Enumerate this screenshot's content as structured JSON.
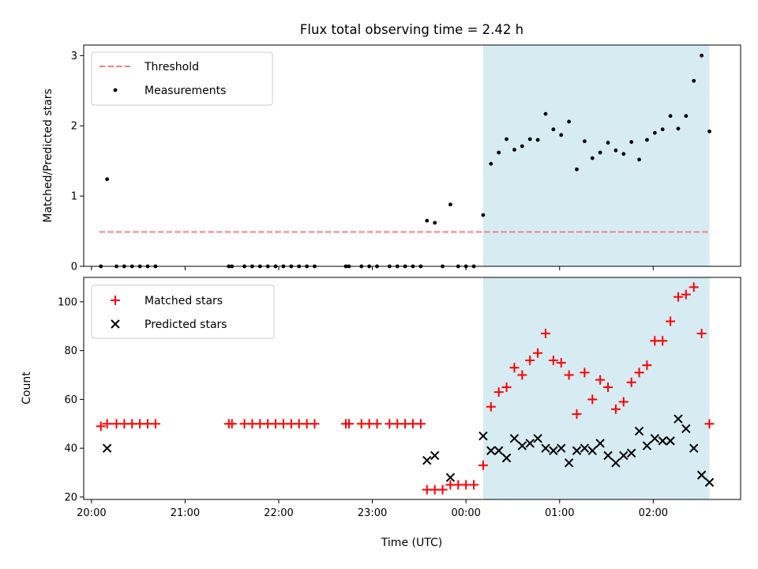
{
  "chart_data": [
    {
      "panel": "top",
      "type": "scatter",
      "title": "Flux total observing time = 2.42 h",
      "ylabel": "Matched/Predicted stars",
      "xlim": [
        "19:55",
        "02:56"
      ],
      "ylim": [
        0,
        3.15
      ],
      "yticks": [
        "0",
        "1",
        "2",
        "3"
      ],
      "shaded_region": {
        "from": "00:11",
        "to": "02:36",
        "color": "#add8e6"
      },
      "legend": {
        "placement": "upper left",
        "entries": [
          "Threshold",
          "Measurements"
        ]
      },
      "threshold": {
        "name": "Threshold",
        "value": 0.49,
        "x_from": "20:05",
        "x_to": "02:36",
        "color": "#f08080",
        "style": "dashed"
      },
      "measurements": {
        "name": "Measurements",
        "color": "#000000",
        "points": [
          [
            "20:06",
            0
          ],
          [
            "20:10",
            1.24
          ],
          [
            "20:16",
            0
          ],
          [
            "20:21",
            0
          ],
          [
            "20:26",
            0
          ],
          [
            "20:31",
            0
          ],
          [
            "20:36",
            0
          ],
          [
            "20:41",
            0
          ],
          [
            "21:28",
            0
          ],
          [
            "21:30",
            0
          ],
          [
            "21:38",
            0
          ],
          [
            "21:43",
            0
          ],
          [
            "21:48",
            0
          ],
          [
            "21:53",
            0
          ],
          [
            "21:58",
            0
          ],
          [
            "22:03",
            0
          ],
          [
            "22:08",
            0
          ],
          [
            "22:13",
            0
          ],
          [
            "22:18",
            0
          ],
          [
            "22:23",
            0
          ],
          [
            "22:43",
            0
          ],
          [
            "22:45",
            0
          ],
          [
            "22:53",
            0
          ],
          [
            "22:58",
            0
          ],
          [
            "23:03",
            0
          ],
          [
            "23:11",
            0
          ],
          [
            "23:16",
            0
          ],
          [
            "23:21",
            0
          ],
          [
            "23:26",
            0
          ],
          [
            "23:31",
            0
          ],
          [
            "23:35",
            0.65
          ],
          [
            "23:40",
            0.62
          ],
          [
            "23:45",
            0
          ],
          [
            "23:50",
            0.88
          ],
          [
            "23:55",
            0
          ],
          [
            "00:00",
            0
          ],
          [
            "00:05",
            0
          ],
          [
            "00:11",
            0.73
          ],
          [
            "00:16",
            1.46
          ],
          [
            "00:21",
            1.62
          ],
          [
            "00:26",
            1.81
          ],
          [
            "00:31",
            1.66
          ],
          [
            "00:36",
            1.71
          ],
          [
            "00:41",
            1.81
          ],
          [
            "00:46",
            1.8
          ],
          [
            "00:51",
            2.17
          ],
          [
            "00:56",
            1.95
          ],
          [
            "01:01",
            1.87
          ],
          [
            "01:06",
            2.06
          ],
          [
            "01:11",
            1.38
          ],
          [
            "01:16",
            1.78
          ],
          [
            "01:21",
            1.54
          ],
          [
            "01:26",
            1.62
          ],
          [
            "01:31",
            1.76
          ],
          [
            "01:36",
            1.65
          ],
          [
            "01:41",
            1.6
          ],
          [
            "01:46",
            1.77
          ],
          [
            "01:51",
            1.52
          ],
          [
            "01:56",
            1.8
          ],
          [
            "02:01",
            1.9
          ],
          [
            "02:06",
            1.95
          ],
          [
            "02:11",
            2.14
          ],
          [
            "02:16",
            1.96
          ],
          [
            "02:21",
            2.14
          ],
          [
            "02:26",
            2.64
          ],
          [
            "02:31",
            3.0
          ],
          [
            "02:36",
            1.92
          ]
        ]
      }
    },
    {
      "panel": "bottom",
      "type": "scatter",
      "xlabel": "Time (UTC)",
      "ylabel": "Count",
      "xlim": [
        "19:55",
        "02:56"
      ],
      "ylim": [
        19,
        110
      ],
      "yticks": [
        "20",
        "40",
        "60",
        "80",
        "100"
      ],
      "xticks": [
        "20:00",
        "21:00",
        "22:00",
        "23:00",
        "00:00",
        "01:00",
        "02:00"
      ],
      "shaded_region": {
        "from": "00:11",
        "to": "02:36",
        "color": "#add8e6"
      },
      "legend": {
        "placement": "upper left",
        "entries": [
          "Matched stars",
          "Predicted stars"
        ]
      },
      "series": [
        {
          "name": "Matched stars",
          "marker": "plus",
          "color": "#ff0000",
          "points": [
            [
              "20:06",
              49
            ],
            [
              "20:10",
              50
            ],
            [
              "20:16",
              50
            ],
            [
              "20:21",
              50
            ],
            [
              "20:26",
              50
            ],
            [
              "20:31",
              50
            ],
            [
              "20:36",
              50
            ],
            [
              "20:41",
              50
            ],
            [
              "21:28",
              50
            ],
            [
              "21:30",
              50
            ],
            [
              "21:38",
              50
            ],
            [
              "21:43",
              50
            ],
            [
              "21:48",
              50
            ],
            [
              "21:53",
              50
            ],
            [
              "21:58",
              50
            ],
            [
              "22:03",
              50
            ],
            [
              "22:08",
              50
            ],
            [
              "22:13",
              50
            ],
            [
              "22:18",
              50
            ],
            [
              "22:23",
              50
            ],
            [
              "22:43",
              50
            ],
            [
              "22:45",
              50
            ],
            [
              "22:53",
              50
            ],
            [
              "22:58",
              50
            ],
            [
              "23:03",
              50
            ],
            [
              "23:11",
              50
            ],
            [
              "23:16",
              50
            ],
            [
              "23:21",
              50
            ],
            [
              "23:26",
              50
            ],
            [
              "23:31",
              50
            ],
            [
              "23:35",
              23
            ],
            [
              "23:40",
              23
            ],
            [
              "23:45",
              23
            ],
            [
              "23:50",
              25
            ],
            [
              "23:55",
              25
            ],
            [
              "00:00",
              25
            ],
            [
              "00:05",
              25
            ],
            [
              "00:11",
              33
            ],
            [
              "00:16",
              57
            ],
            [
              "00:21",
              63
            ],
            [
              "00:26",
              65
            ],
            [
              "00:31",
              73
            ],
            [
              "00:36",
              70
            ],
            [
              "00:41",
              76
            ],
            [
              "00:46",
              79
            ],
            [
              "00:51",
              87
            ],
            [
              "00:56",
              76
            ],
            [
              "01:01",
              75
            ],
            [
              "01:06",
              70
            ],
            [
              "01:11",
              54
            ],
            [
              "01:16",
              71
            ],
            [
              "01:21",
              60
            ],
            [
              "01:26",
              68
            ],
            [
              "01:31",
              65
            ],
            [
              "01:36",
              56
            ],
            [
              "01:41",
              59
            ],
            [
              "01:46",
              67
            ],
            [
              "01:51",
              71
            ],
            [
              "01:56",
              74
            ],
            [
              "02:01",
              84
            ],
            [
              "02:06",
              84
            ],
            [
              "02:11",
              92
            ],
            [
              "02:16",
              102
            ],
            [
              "02:21",
              103
            ],
            [
              "02:26",
              106
            ],
            [
              "02:31",
              87
            ],
            [
              "02:36",
              50
            ]
          ]
        },
        {
          "name": "Predicted stars",
          "marker": "x",
          "color": "#000000",
          "points": [
            [
              "20:10",
              40
            ],
            [
              "23:35",
              35
            ],
            [
              "23:40",
              37
            ],
            [
              "23:50",
              28
            ],
            [
              "00:11",
              45
            ],
            [
              "00:16",
              39
            ],
            [
              "00:21",
              39
            ],
            [
              "00:26",
              36
            ],
            [
              "00:31",
              44
            ],
            [
              "00:36",
              41
            ],
            [
              "00:41",
              42
            ],
            [
              "00:46",
              44
            ],
            [
              "00:51",
              40
            ],
            [
              "00:56",
              39
            ],
            [
              "01:01",
              40
            ],
            [
              "01:06",
              34
            ],
            [
              "01:11",
              39
            ],
            [
              "01:16",
              40
            ],
            [
              "01:21",
              39
            ],
            [
              "01:26",
              42
            ],
            [
              "01:31",
              37
            ],
            [
              "01:36",
              34
            ],
            [
              "01:41",
              37
            ],
            [
              "01:46",
              38
            ],
            [
              "01:51",
              47
            ],
            [
              "01:56",
              41
            ],
            [
              "02:01",
              44
            ],
            [
              "02:06",
              43
            ],
            [
              "02:11",
              43
            ],
            [
              "02:16",
              52
            ],
            [
              "02:21",
              48
            ],
            [
              "02:26",
              40
            ],
            [
              "02:31",
              29
            ],
            [
              "02:36",
              26
            ]
          ]
        }
      ]
    }
  ]
}
